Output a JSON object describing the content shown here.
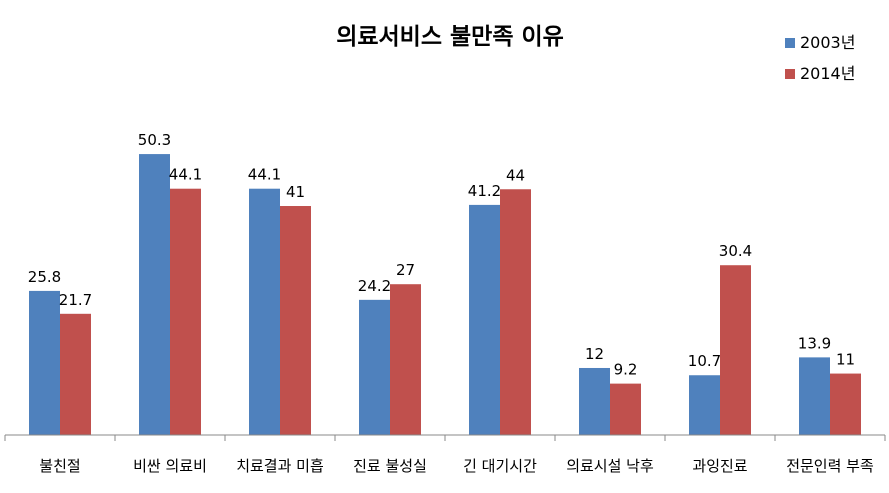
{
  "chart_data": {
    "type": "bar",
    "title": "의료서비스 불만족 이유",
    "xlabel": "",
    "ylabel": "",
    "ylim": [
      0,
      55
    ],
    "grid": false,
    "legend_position": "top-right",
    "categories": [
      "불친절",
      "비싼 의료비",
      "치료결과 미흡",
      "진료 불성실",
      "긴 대기시간",
      "의료시설 낙후",
      "과잉진료",
      "전문인력 부족"
    ],
    "series": [
      {
        "name": "2003년",
        "color": "#4f81bd",
        "values": [
          25.8,
          50.3,
          44.1,
          24.2,
          41.2,
          12,
          10.7,
          13.9
        ],
        "labels": [
          "25.8",
          "50.3",
          "44.1",
          "24.2",
          "41.2",
          "12",
          "10.7",
          "13.9"
        ]
      },
      {
        "name": "2014년",
        "color": "#c0504d",
        "values": [
          21.7,
          44.1,
          41,
          27,
          44,
          9.2,
          30.4,
          11
        ],
        "labels": [
          "21.7",
          "44.1",
          "41",
          "27",
          "44",
          "9.2",
          "30.4",
          "11"
        ]
      }
    ]
  }
}
